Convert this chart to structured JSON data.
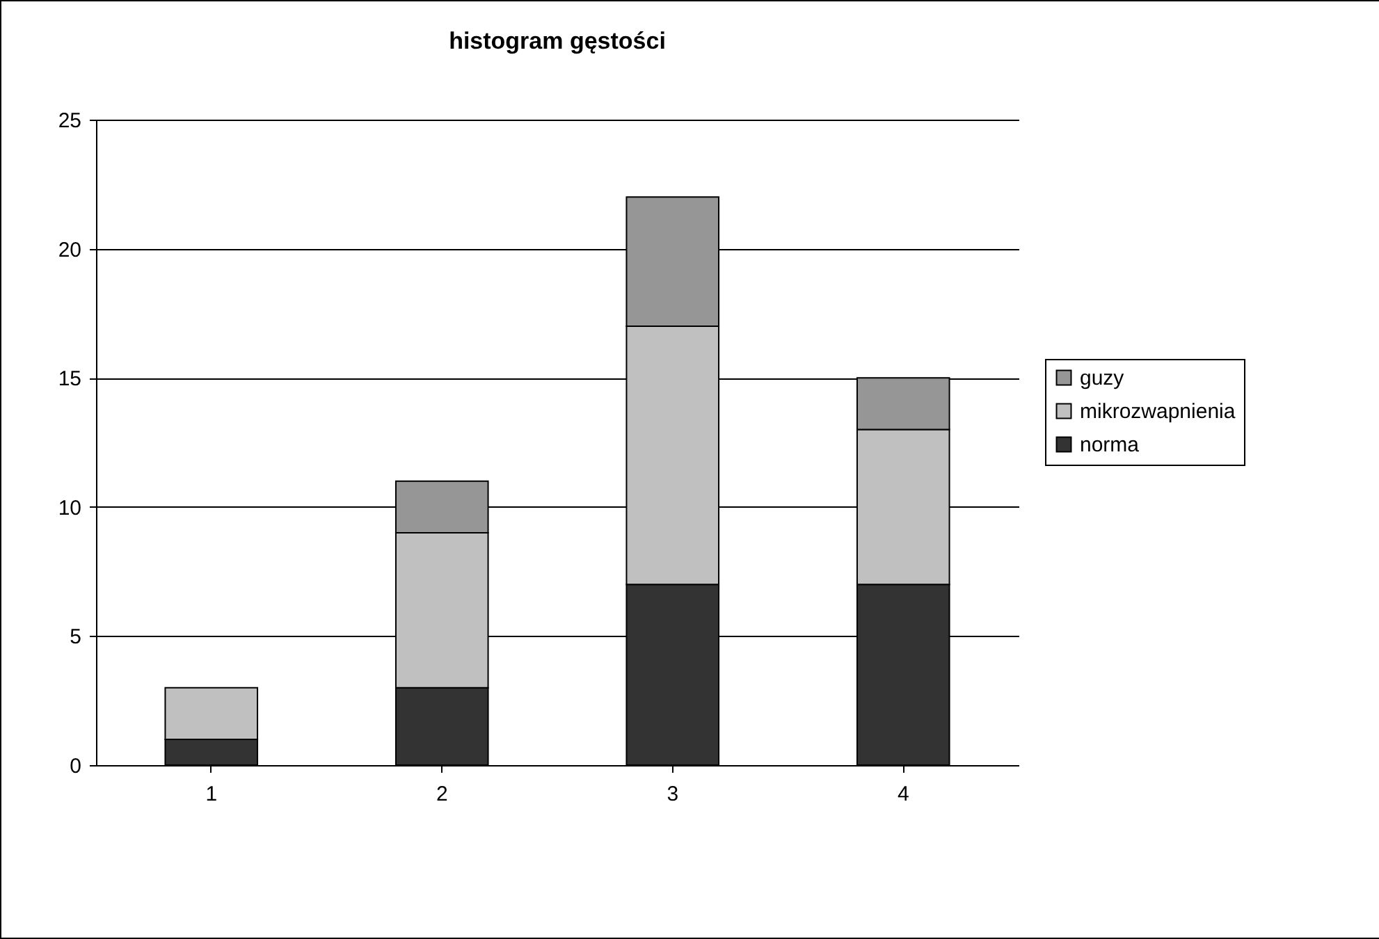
{
  "chart_data": {
    "type": "bar",
    "title": "histogram gęstości",
    "categories": [
      "1",
      "2",
      "3",
      "4"
    ],
    "stacked": true,
    "series": [
      {
        "name": "norma",
        "color": "#333333",
        "values": [
          1,
          3,
          7,
          7
        ]
      },
      {
        "name": "mikrozwapnienia",
        "color": "#c0c0c0",
        "values": [
          2,
          6,
          10,
          6
        ]
      },
      {
        "name": "guzy",
        "color": "#969696",
        "values": [
          null,
          2,
          5,
          2
        ]
      }
    ],
    "ylim": [
      0,
      25
    ],
    "yticks": [
      0,
      5,
      10,
      15,
      20,
      25
    ],
    "grid": "y",
    "legend": "right"
  }
}
